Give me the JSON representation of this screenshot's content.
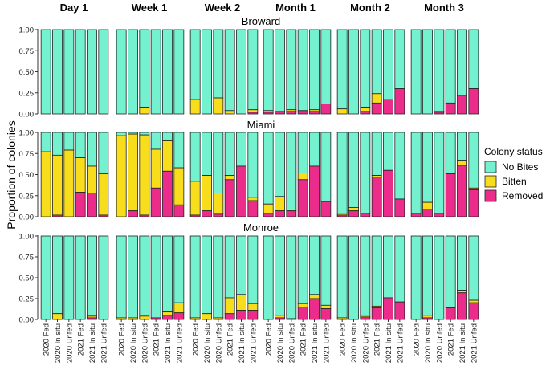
{
  "chart_data": {
    "type": "bar",
    "stacked": true,
    "ylabel": "Proportion of colonies",
    "ylim": [
      0,
      1
    ],
    "yticks": [
      "0.00",
      "0.25",
      "0.50",
      "0.75",
      "1.00"
    ],
    "columns": [
      "Day 1",
      "Week 1",
      "Week 2",
      "Month 1",
      "Month 2",
      "Month 3"
    ],
    "rows": [
      "Broward",
      "Miami",
      "Monroe"
    ],
    "categories": [
      "2020 Fed",
      "2020 In situ",
      "2020 Unfed",
      "2021 Fed",
      "2021 In situ",
      "2021 Unfed"
    ],
    "legend": {
      "title": "Colony status",
      "entries": [
        {
          "label": "No Bites",
          "color": "#74f2cf"
        },
        {
          "label": "Bitten",
          "color": "#f7dd1c"
        },
        {
          "label": "Removed",
          "color": "#ec2c8a"
        }
      ]
    },
    "panels": {
      "Broward": {
        "Day 1": {
          "removed": [
            0,
            0,
            0,
            0,
            0,
            0
          ],
          "bitten": [
            0,
            0,
            0,
            0,
            0,
            0
          ]
        },
        "Week 1": {
          "removed": [
            0,
            0,
            0,
            0,
            0,
            0
          ],
          "bitten": [
            0,
            0,
            0.08,
            0,
            0,
            0
          ]
        },
        "Week 2": {
          "removed": [
            0,
            0,
            0,
            0,
            0,
            0.02
          ],
          "bitten": [
            0.17,
            0,
            0.19,
            0.04,
            0,
            0.03
          ]
        },
        "Month 1": {
          "removed": [
            0.02,
            0.03,
            0.03,
            0.04,
            0.03,
            0.12
          ],
          "bitten": [
            0.02,
            0,
            0.02,
            0,
            0.02,
            0
          ]
        },
        "Month 2": {
          "removed": [
            0,
            0,
            0.03,
            0.13,
            0.17,
            0.3
          ],
          "bitten": [
            0.06,
            0,
            0.05,
            0.11,
            0,
            0.02
          ]
        },
        "Month 3": {
          "removed": [
            0,
            0,
            0.02,
            0.13,
            0.22,
            0.3
          ],
          "bitten": [
            0,
            0,
            0.01,
            0,
            0,
            0
          ]
        }
      },
      "Miami": {
        "Day 1": {
          "removed": [
            0,
            0.02,
            0,
            0.29,
            0.28,
            0.02
          ],
          "bitten": [
            0.77,
            0.71,
            0.79,
            0.41,
            0.32,
            0.49
          ]
        },
        "Week 1": {
          "removed": [
            0,
            0.07,
            0.02,
            0.34,
            0.54,
            0.14
          ],
          "bitten": [
            0.96,
            0.91,
            0.95,
            0.46,
            0.36,
            0.44
          ]
        },
        "Week 2": {
          "removed": [
            0.02,
            0.07,
            0.03,
            0.44,
            0.6,
            0.19
          ],
          "bitten": [
            0.4,
            0.42,
            0.25,
            0.05,
            0,
            0.04
          ]
        },
        "Month 1": {
          "removed": [
            0.04,
            0.07,
            0.07,
            0.44,
            0.6,
            0.18
          ],
          "bitten": [
            0.11,
            0.17,
            0.02,
            0.08,
            0,
            0
          ]
        },
        "Month 2": {
          "removed": [
            0.02,
            0.07,
            0.04,
            0.47,
            0.55,
            0.21
          ],
          "bitten": [
            0.02,
            0.04,
            0,
            0.02,
            0,
            0
          ]
        },
        "Month 3": {
          "removed": [
            0.04,
            0.09,
            0.04,
            0.51,
            0.61,
            0.32
          ],
          "bitten": [
            0,
            0.08,
            0,
            0,
            0.06,
            0.02
          ]
        }
      },
      "Monroe": {
        "Day 1": {
          "removed": [
            0,
            0,
            0,
            0,
            0.02,
            0
          ],
          "bitten": [
            0,
            0.07,
            0,
            0,
            0.02,
            0
          ]
        },
        "Week 1": {
          "removed": [
            0,
            0,
            0,
            0.02,
            0.05,
            0.08
          ],
          "bitten": [
            0.02,
            0.02,
            0.04,
            0,
            0.04,
            0.12
          ]
        },
        "Week 2": {
          "removed": [
            0,
            0,
            0,
            0.07,
            0.11,
            0.11
          ],
          "bitten": [
            0.02,
            0.07,
            0.02,
            0.19,
            0.19,
            0.08
          ]
        },
        "Month 1": {
          "removed": [
            0,
            0.02,
            0.01,
            0.15,
            0.25,
            0.13
          ],
          "bitten": [
            0,
            0.03,
            0,
            0.04,
            0.05,
            0.04
          ]
        },
        "Month 2": {
          "removed": [
            0,
            0,
            0.03,
            0.14,
            0.26,
            0.21
          ],
          "bitten": [
            0.02,
            0,
            0.02,
            0.02,
            0,
            0
          ]
        },
        "Month 3": {
          "removed": [
            0,
            0.02,
            0,
            0.14,
            0.32,
            0.2
          ],
          "bitten": [
            0,
            0.03,
            0,
            0,
            0.03,
            0.03
          ]
        }
      }
    }
  }
}
